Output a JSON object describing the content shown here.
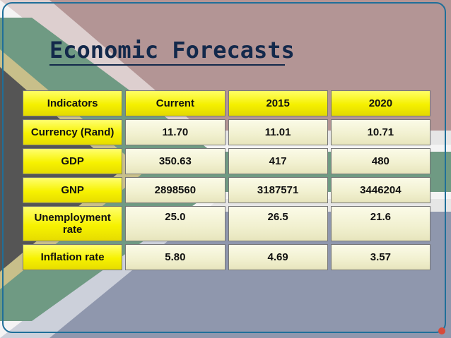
{
  "slide": {
    "title": "Economic Forecasts"
  },
  "table": {
    "headers": [
      "Indicators",
      "Current",
      "2015",
      "2020"
    ],
    "rows": [
      {
        "indicator": "Currency (Rand)",
        "current": "11.70",
        "y2015": "11.01",
        "y2020": "10.71"
      },
      {
        "indicator": "GDP",
        "current": "350.63",
        "y2015": "417",
        "y2020": "480"
      },
      {
        "indicator": "GNP",
        "current": "2898560",
        "y2015": "3187571",
        "y2020": "3446204"
      },
      {
        "indicator": "Unemployment rate",
        "current": "25.0",
        "y2015": "26.5",
        "y2020": "21.6"
      },
      {
        "indicator": "Inflation rate",
        "current": "5.80",
        "y2015": "4.69",
        "y2020": "3.57"
      }
    ]
  },
  "colors": {
    "flag_red": "#b39595",
    "flag_blue": "#8f97ad",
    "flag_green": "#6f9a83",
    "flag_black": "#555555",
    "flag_gold": "#c8bf8a",
    "title": "#13294b",
    "header_yellow": "#f5f000",
    "cell_cream": "#f1f0cf",
    "frame_blue": "#1f6f99"
  }
}
